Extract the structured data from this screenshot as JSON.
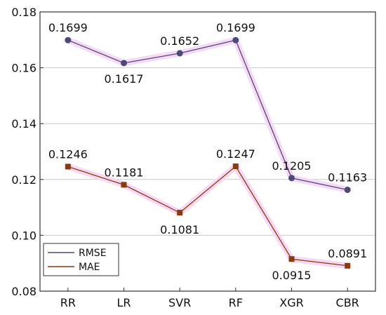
{
  "chart_data": {
    "type": "line",
    "categories": [
      "RR",
      "LR",
      "SVR",
      "RF",
      "XGR",
      "CBR"
    ],
    "series": [
      {
        "name": "RMSE",
        "values": [
          0.1699,
          0.1617,
          0.1652,
          0.1699,
          0.1205,
          0.1163
        ],
        "labels": [
          "0.1699",
          "0.1617",
          "0.1652",
          "0.1699",
          "0.1205",
          "0.1163"
        ],
        "color": "#4a4a78",
        "marker": "circle"
      },
      {
        "name": "MAE",
        "values": [
          0.1246,
          0.1181,
          0.1081,
          0.1247,
          0.0915,
          0.0891
        ],
        "labels": [
          "0.1246",
          "0.1181",
          "0.1081",
          "0.1247",
          "0.0915",
          "0.0891"
        ],
        "color": "#8b3a0e",
        "marker": "square"
      }
    ],
    "ylim": [
      0.08,
      0.18
    ],
    "yticks": [
      0.08,
      0.1,
      0.12,
      0.14,
      0.16,
      0.18
    ],
    "ytick_labels": [
      "0.08",
      "0.10",
      "0.12",
      "0.14",
      "0.16",
      "0.18"
    ],
    "grid": "horizontal",
    "legend": "bottom-left",
    "highlight_color": "#f7d8f5"
  }
}
